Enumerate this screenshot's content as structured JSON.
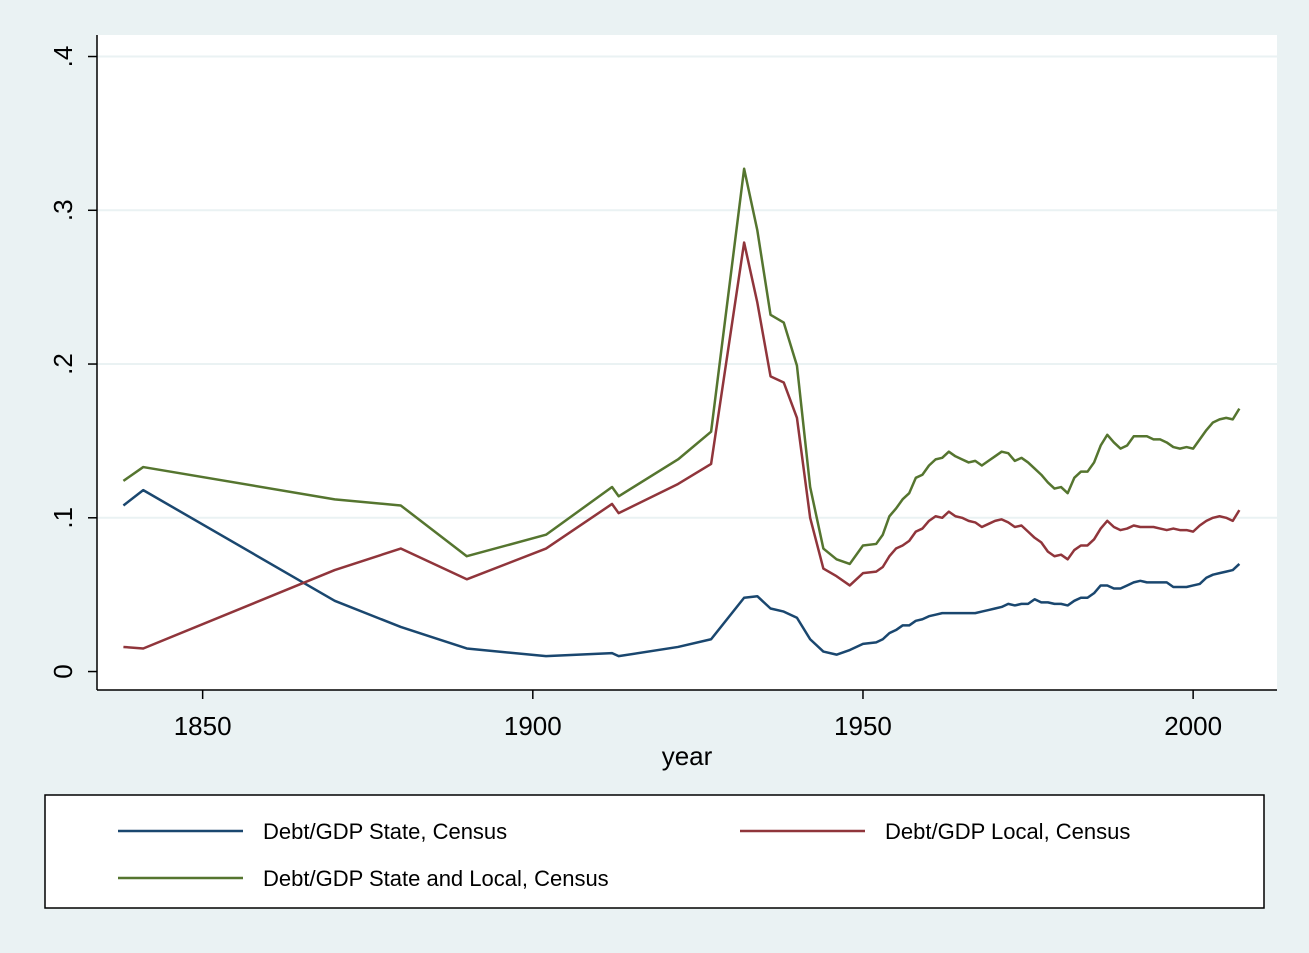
{
  "chart_data": {
    "type": "line",
    "x_label": "year",
    "x": [
      1838,
      1841,
      1870,
      1880,
      1890,
      1902,
      1912,
      1913,
      1922,
      1927,
      1932,
      1934,
      1936,
      1938,
      1940,
      1942,
      1944,
      1946,
      1948,
      1950,
      1952,
      1953,
      1954,
      1955,
      1956,
      1957,
      1958,
      1959,
      1960,
      1961,
      1962,
      1963,
      1964,
      1965,
      1966,
      1967,
      1968,
      1969,
      1970,
      1971,
      1972,
      1973,
      1974,
      1975,
      1976,
      1977,
      1978,
      1979,
      1980,
      1981,
      1982,
      1983,
      1984,
      1985,
      1986,
      1987,
      1988,
      1989,
      1990,
      1991,
      1992,
      1993,
      1994,
      1995,
      1996,
      1997,
      1998,
      1999,
      2000,
      2001,
      2002,
      2003,
      2004,
      2005,
      2006,
      2007
    ],
    "series": [
      {
        "name": "Debt/GDP State, Census",
        "color": "#1a476f",
        "values": [
          0.108,
          0.118,
          0.046,
          0.029,
          0.015,
          0.01,
          0.012,
          0.01,
          0.016,
          0.021,
          0.048,
          0.049,
          0.041,
          0.039,
          0.035,
          0.021,
          0.013,
          0.011,
          0.014,
          0.018,
          0.019,
          0.021,
          0.025,
          0.027,
          0.03,
          0.03,
          0.033,
          0.034,
          0.036,
          0.037,
          0.038,
          0.038,
          0.038,
          0.038,
          0.038,
          0.038,
          0.039,
          0.04,
          0.041,
          0.042,
          0.044,
          0.043,
          0.044,
          0.044,
          0.047,
          0.045,
          0.045,
          0.044,
          0.044,
          0.043,
          0.046,
          0.048,
          0.048,
          0.051,
          0.056,
          0.056,
          0.054,
          0.054,
          0.056,
          0.058,
          0.059,
          0.058,
          0.058,
          0.058,
          0.058,
          0.055,
          0.055,
          0.055,
          0.056,
          0.057,
          0.061,
          0.063,
          0.064,
          0.065,
          0.066,
          0.07
        ]
      },
      {
        "name": "Debt/GDP Local, Census",
        "color": "#90353b",
        "values": [
          0.016,
          0.015,
          0.066,
          0.08,
          0.06,
          0.08,
          0.109,
          0.103,
          0.122,
          0.135,
          0.279,
          0.24,
          0.192,
          0.188,
          0.165,
          0.1,
          0.067,
          0.062,
          0.056,
          0.064,
          0.065,
          0.068,
          0.075,
          0.08,
          0.082,
          0.085,
          0.091,
          0.093,
          0.098,
          0.101,
          0.1,
          0.104,
          0.101,
          0.1,
          0.098,
          0.097,
          0.094,
          0.096,
          0.098,
          0.099,
          0.097,
          0.094,
          0.095,
          0.091,
          0.087,
          0.084,
          0.078,
          0.075,
          0.076,
          0.073,
          0.079,
          0.082,
          0.082,
          0.086,
          0.093,
          0.098,
          0.094,
          0.092,
          0.093,
          0.095,
          0.094,
          0.094,
          0.094,
          0.093,
          0.092,
          0.093,
          0.092,
          0.092,
          0.091,
          0.095,
          0.098,
          0.1,
          0.101,
          0.1,
          0.098,
          0.105
        ]
      },
      {
        "name": "Debt/GDP State and Local, Census",
        "color": "#55752f",
        "values": [
          0.124,
          0.133,
          0.112,
          0.108,
          0.075,
          0.089,
          0.12,
          0.114,
          0.138,
          0.156,
          0.327,
          0.287,
          0.232,
          0.227,
          0.199,
          0.12,
          0.08,
          0.073,
          0.07,
          0.082,
          0.083,
          0.089,
          0.101,
          0.106,
          0.112,
          0.116,
          0.126,
          0.128,
          0.134,
          0.138,
          0.139,
          0.143,
          0.14,
          0.138,
          0.136,
          0.137,
          0.134,
          0.137,
          0.14,
          0.143,
          0.142,
          0.137,
          0.139,
          0.136,
          0.132,
          0.128,
          0.123,
          0.119,
          0.12,
          0.116,
          0.126,
          0.13,
          0.13,
          0.136,
          0.147,
          0.154,
          0.149,
          0.145,
          0.147,
          0.153,
          0.153,
          0.153,
          0.151,
          0.151,
          0.149,
          0.146,
          0.145,
          0.146,
          0.145,
          0.151,
          0.157,
          0.162,
          0.164,
          0.165,
          0.164,
          0.171
        ]
      }
    ],
    "xlim": [
      1834,
      2012.7
    ],
    "xticks": [
      1850,
      1900,
      1950,
      2000
    ],
    "ylim": [
      -0.012,
      0.414
    ],
    "yticks": [
      0,
      {
        "value": 0.1,
        "label": ".1"
      },
      {
        "value": 0.2,
        "label": ".2"
      },
      {
        "value": 0.3,
        "label": ".3"
      },
      {
        "value": 0.4,
        "label": ".4"
      }
    ],
    "grid": true,
    "legend": "bottom"
  }
}
